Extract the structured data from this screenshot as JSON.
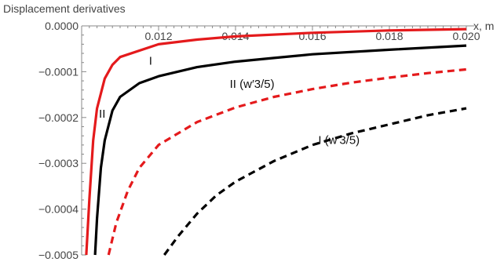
{
  "chart_data": {
    "type": "line",
    "title": "Displacement derivatives",
    "xlabel": "x, m",
    "ylabel": "",
    "xlim": [
      0.01,
      0.02
    ],
    "ylim": [
      -0.0005,
      0.0
    ],
    "grid": false,
    "x_ticks": [
      0.012,
      0.014,
      0.016,
      0.018,
      0.02
    ],
    "x_tick_labels": [
      "0.012",
      "0.014",
      "0.016",
      "0.018",
      "0.020"
    ],
    "y_ticks": [
      0.0,
      -0.0001,
      -0.0002,
      -0.0003,
      -0.0004,
      -0.0005
    ],
    "y_tick_labels": [
      "0.0000",
      "−0.0001",
      "−0.0002",
      "−0.0003",
      "−0.0004",
      "−0.0005"
    ],
    "series": [
      {
        "color": "#e41a1c",
        "dash": "solid",
        "x": [
          0.01012,
          0.0102,
          0.0103,
          0.0104,
          0.0106,
          0.0108,
          0.011,
          0.012,
          0.013,
          0.014,
          0.016,
          0.018,
          0.02
        ],
        "y": [
          -0.0005,
          -0.00038,
          -0.00025,
          -0.00018,
          -0.000115,
          -8.5e-05,
          -6.8e-05,
          -4e-05,
          -3e-05,
          -2.3e-05,
          -1.5e-05,
          -1e-05,
          -7e-06
        ]
      },
      {
        "color": "#000000",
        "dash": "solid",
        "x": [
          0.01035,
          0.0104,
          0.0105,
          0.0106,
          0.0108,
          0.011,
          0.0115,
          0.012,
          0.013,
          0.014,
          0.015,
          0.016,
          0.018,
          0.02
        ],
        "y": [
          -0.0005,
          -0.00042,
          -0.00031,
          -0.00025,
          -0.000185,
          -0.000155,
          -0.000125,
          -0.00011,
          -9e-05,
          -7.8e-05,
          -7e-05,
          -6.2e-05,
          -5.2e-05,
          -4.3e-05
        ]
      },
      {
        "color": "#e41a1c",
        "dash": "dashed",
        "x": [
          0.0107,
          0.0109,
          0.0112,
          0.0115,
          0.012,
          0.013,
          0.014,
          0.015,
          0.016,
          0.017,
          0.018,
          0.019,
          0.02
        ],
        "y": [
          -0.0005,
          -0.00043,
          -0.00036,
          -0.00031,
          -0.00026,
          -0.00021,
          -0.000178,
          -0.000155,
          -0.000138,
          -0.000124,
          -0.000113,
          -0.000103,
          -9.5e-05
        ]
      },
      {
        "color": "#000000",
        "dash": "dashed",
        "x": [
          0.01215,
          0.0125,
          0.013,
          0.0135,
          0.014,
          0.015,
          0.016,
          0.017,
          0.018,
          0.019,
          0.02
        ],
        "y": [
          -0.0005,
          -0.00046,
          -0.00041,
          -0.00037,
          -0.00034,
          -0.000295,
          -0.00026,
          -0.000235,
          -0.000215,
          -0.000195,
          -0.00018
        ]
      }
    ],
    "annotations": [
      {
        "text": "II",
        "x": 0.01045,
        "y": -0.0002
      },
      {
        "text": "I",
        "x": 0.01175,
        "y": -8.5e-05
      },
      {
        "text": "II (w′3/5)",
        "x": 0.01385,
        "y": -0.000135
      },
      {
        "text": "I (w′3/5)",
        "x": 0.01615,
        "y": -0.000258
      }
    ]
  }
}
